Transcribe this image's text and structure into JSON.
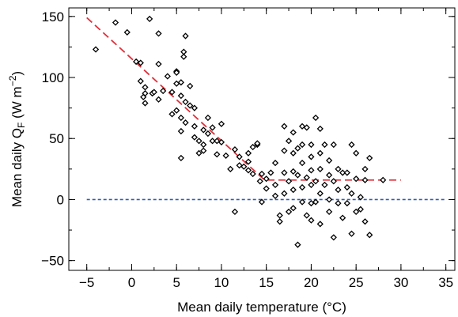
{
  "chart_data": {
    "type": "scatter",
    "xlabel": "Mean daily temperature (°C)",
    "ylabel_parts": {
      "main": "Mean daily Q",
      "sub": "F",
      "unit": " (W m",
      "sup": "−2",
      "close": ")"
    },
    "xlim": [
      -7,
      36
    ],
    "ylim": [
      -58,
      157
    ],
    "xticks": [
      -5,
      0,
      5,
      10,
      15,
      20,
      25,
      30,
      35
    ],
    "xtick_labels": [
      "−5",
      "0",
      "5",
      "10",
      "15",
      "20",
      "25",
      "30",
      "35"
    ],
    "xminor": [
      -5,
      -2.5,
      0,
      2.5,
      5,
      7.5,
      10,
      12.5,
      15,
      17.5,
      20,
      22.5,
      25,
      27.5,
      30,
      32.5,
      35
    ],
    "yticks": [
      -50,
      0,
      50,
      100,
      150
    ],
    "ytick_labels": [
      "−50",
      "0",
      "50",
      "100",
      "150"
    ],
    "yminor": [
      -50,
      -25,
      0,
      25,
      50,
      75,
      100,
      125,
      150
    ],
    "grid": false,
    "points": [
      [
        -4,
        123
      ],
      [
        -1.8,
        145
      ],
      [
        -0.5,
        137
      ],
      [
        0.5,
        113
      ],
      [
        1,
        97
      ],
      [
        1,
        112
      ],
      [
        1.3,
        84
      ],
      [
        1.5,
        87
      ],
      [
        1.5,
        79
      ],
      [
        1.5,
        92
      ],
      [
        2,
        148
      ],
      [
        2.3,
        87
      ],
      [
        2.5,
        88
      ],
      [
        3,
        136
      ],
      [
        3,
        111
      ],
      [
        3,
        82
      ],
      [
        3.5,
        89
      ],
      [
        4,
        101
      ],
      [
        4.5,
        88
      ],
      [
        4.5,
        70
      ],
      [
        5,
        105
      ],
      [
        5,
        104
      ],
      [
        5,
        95
      ],
      [
        5,
        73
      ],
      [
        5.5,
        96
      ],
      [
        5.5,
        85
      ],
      [
        5.5,
        67
      ],
      [
        5.5,
        56
      ],
      [
        5.5,
        34
      ],
      [
        5.8,
        117
      ],
      [
        5.8,
        121
      ],
      [
        6,
        134
      ],
      [
        6,
        80
      ],
      [
        6,
        63
      ],
      [
        6.5,
        93
      ],
      [
        6.5,
        77
      ],
      [
        7,
        75
      ],
      [
        7,
        60
      ],
      [
        7,
        51
      ],
      [
        7.5,
        48
      ],
      [
        7.5,
        38
      ],
      [
        8,
        57
      ],
      [
        8,
        45
      ],
      [
        8,
        40
      ],
      [
        8.5,
        67
      ],
      [
        8.5,
        54
      ],
      [
        9,
        59
      ],
      [
        9,
        48
      ],
      [
        9.5,
        48
      ],
      [
        9.5,
        37
      ],
      [
        10,
        62
      ],
      [
        10,
        47
      ],
      [
        10.5,
        36
      ],
      [
        11,
        25
      ],
      [
        11.5,
        41
      ],
      [
        11.5,
        -10
      ],
      [
        12,
        35
      ],
      [
        12,
        28
      ],
      [
        12.5,
        27
      ],
      [
        13,
        38
      ],
      [
        13,
        31
      ],
      [
        13,
        24
      ],
      [
        13.5,
        43
      ],
      [
        13.5,
        21
      ],
      [
        14,
        45
      ],
      [
        14,
        46
      ],
      [
        14.3,
        15
      ],
      [
        14.5,
        21
      ],
      [
        14.5,
        -2
      ],
      [
        15,
        17
      ],
      [
        15,
        9
      ],
      [
        15.5,
        22
      ],
      [
        16,
        30
      ],
      [
        16,
        12
      ],
      [
        16,
        3
      ],
      [
        16.5,
        -13
      ],
      [
        16.5,
        -18
      ],
      [
        17,
        60
      ],
      [
        17,
        40
      ],
      [
        17,
        22
      ],
      [
        17,
        5
      ],
      [
        17.5,
        48
      ],
      [
        17.5,
        15
      ],
      [
        17.5,
        -10
      ],
      [
        18,
        55
      ],
      [
        18,
        38
      ],
      [
        18,
        23
      ],
      [
        18,
        8
      ],
      [
        18,
        -7
      ],
      [
        18.5,
        42
      ],
      [
        18.5,
        20
      ],
      [
        18.5,
        -37
      ],
      [
        19,
        60
      ],
      [
        19,
        45
      ],
      [
        19,
        30
      ],
      [
        19,
        10
      ],
      [
        19,
        -2
      ],
      [
        19.5,
        59
      ],
      [
        19.5,
        18
      ],
      [
        19.5,
        -13
      ],
      [
        20,
        45
      ],
      [
        20,
        35
      ],
      [
        20,
        24
      ],
      [
        20,
        12
      ],
      [
        20,
        -3
      ],
      [
        20,
        -17
      ],
      [
        20.5,
        67
      ],
      [
        20.5,
        15
      ],
      [
        20.5,
        -2
      ],
      [
        21,
        58
      ],
      [
        21,
        38
      ],
      [
        21,
        25
      ],
      [
        21,
        5
      ],
      [
        21,
        -20
      ],
      [
        21.5,
        45
      ],
      [
        21.5,
        12
      ],
      [
        22,
        32
      ],
      [
        22,
        20
      ],
      [
        22,
        0
      ],
      [
        22,
        -10
      ],
      [
        22.5,
        45
      ],
      [
        22.5,
        15
      ],
      [
        22.5,
        -31
      ],
      [
        23,
        25
      ],
      [
        23,
        8
      ],
      [
        23,
        -3
      ],
      [
        23.5,
        22
      ],
      [
        23.5,
        -15
      ],
      [
        24,
        22
      ],
      [
        24,
        10
      ],
      [
        24,
        -3
      ],
      [
        24.5,
        45
      ],
      [
        24.5,
        5
      ],
      [
        24.5,
        -28
      ],
      [
        25,
        38
      ],
      [
        25,
        17
      ],
      [
        25,
        -10
      ],
      [
        25.5,
        2
      ],
      [
        25.5,
        -8
      ],
      [
        26,
        25
      ],
      [
        26,
        16
      ],
      [
        26,
        -18
      ],
      [
        26.5,
        34
      ],
      [
        26.5,
        -29
      ],
      [
        28,
        16
      ]
    ],
    "fit_line": {
      "x": [
        -5,
        14.8,
        30
      ],
      "y": [
        149,
        16,
        16
      ],
      "color": "#e0303a",
      "dash": "dashed"
    },
    "zero_line": {
      "y": 0,
      "x": [
        -5,
        35
      ],
      "color": "#2a5bb8",
      "dash": "dotted"
    },
    "marker": "open-diamond",
    "marker_color": "#000000"
  }
}
